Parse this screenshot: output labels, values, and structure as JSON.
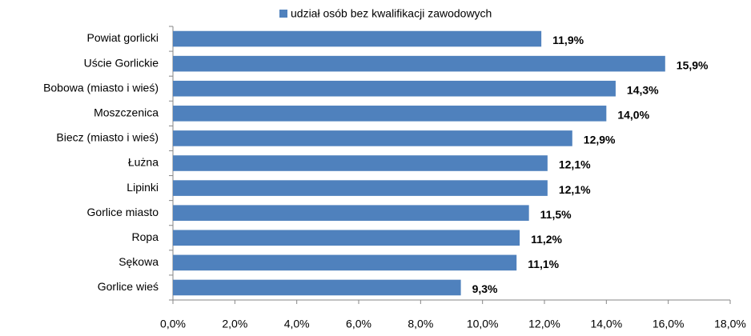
{
  "chart_data": {
    "type": "bar",
    "orientation": "horizontal",
    "categories": [
      "Powiat gorlicki",
      "Uście Gorlickie",
      "Bobowa (miasto  i wieś)",
      "Moszczenica",
      "Biecz (miasto  i wieś)",
      "Łużna",
      "Lipinki",
      "Gorlice miasto",
      "Ropa",
      "Sękowa",
      "Gorlice wieś"
    ],
    "series": [
      {
        "name": "udział osób bez kwalifikacji  zawodowych",
        "color": "#4f81bd",
        "values": [
          11.9,
          15.9,
          14.3,
          14.0,
          12.9,
          12.1,
          12.1,
          11.5,
          11.2,
          11.1,
          9.3
        ],
        "value_labels": [
          "11,9%",
          "15,9%",
          "14,3%",
          "14,0%",
          "12,9%",
          "12,1%",
          "12,1%",
          "11,5%",
          "11,2%",
          "11,1%",
          "9,3%"
        ]
      }
    ],
    "xlim": [
      0,
      18
    ],
    "xticks": [
      {
        "value": 0,
        "label": "0,0%"
      },
      {
        "value": 2,
        "label": "2,0%"
      },
      {
        "value": 4,
        "label": "4,0%"
      },
      {
        "value": 6,
        "label": "6,0%"
      },
      {
        "value": 8,
        "label": "8,0%"
      },
      {
        "value": 10,
        "label": "10,0%"
      },
      {
        "value": 12,
        "label": "12,0%"
      },
      {
        "value": 14,
        "label": "14,0%"
      },
      {
        "value": 16,
        "label": "16,0%"
      },
      {
        "value": 18,
        "label": "18,0%"
      }
    ],
    "legend": "top"
  }
}
